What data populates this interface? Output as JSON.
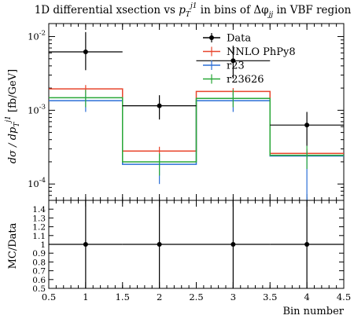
{
  "chart_data": {
    "type": "line",
    "title_prefix": "1D differential xsection vs ",
    "title_suffix": " in bins of Δφ",
    "title_tail": " in VBF region",
    "ylabel_main_prefix": "dσ / dp",
    "ylabel_main_suffix": " [fb/GeV]",
    "ylabel_ratio": "MC/Data",
    "xlabel": "Bin number",
    "x_ticks": [
      "0.5",
      "1",
      "1.5",
      "2",
      "2.5",
      "3",
      "3.5",
      "4",
      "4.5"
    ],
    "x_range": [
      0.5,
      4.5
    ],
    "main_ylim": [
      6e-05,
      0.015
    ],
    "main_scale": "log",
    "main_y_ticks": [
      "10",
      "10",
      "10"
    ],
    "main_y_exponents": [
      "-4",
      "-3",
      "-2"
    ],
    "ratio_ylim": [
      0.5,
      1.5
    ],
    "ratio_y_ticks": [
      "0.5",
      "0.6",
      "0.7",
      "0.8",
      "0.9",
      "1",
      "1.1",
      "1.2",
      "1.3",
      "1.4"
    ],
    "legend_location": "top-right",
    "bin_edges": [
      0.5,
      1.5,
      2.5,
      3.5,
      4.5
    ],
    "data": {
      "name": "Data",
      "x": [
        1,
        2,
        3,
        4
      ],
      "y": [
        0.0062,
        0.00115,
        0.0047,
        0.00063
      ],
      "y_low": [
        0.0035,
        0.00075,
        0.0027,
        0.00033
      ],
      "y_high": [
        0.0115,
        0.0016,
        0.0075,
        0.00095
      ]
    },
    "series": [
      {
        "name": "NNLO PhPy8",
        "color": "#e8462d",
        "values": [
          0.00195,
          0.00028,
          0.0018,
          0.00026
        ],
        "err_low": [
          0.0017,
          0.00024,
          0.0016,
          0.00022
        ],
        "err_high": [
          0.0022,
          0.00032,
          0.002,
          0.0003
        ]
      },
      {
        "name": "r23",
        "color": "#2b6fd6",
        "values": [
          0.00135,
          0.000185,
          0.00135,
          0.00024
        ],
        "err_low": [
          0.00095,
          0.0001,
          0.00095,
          6e-05
        ],
        "err_high": [
          0.0017,
          0.00025,
          0.0017,
          0.00028
        ]
      },
      {
        "name": "r23626",
        "color": "#28a737",
        "values": [
          0.00148,
          0.0002,
          0.00145,
          0.000245
        ],
        "err_low": [
          0.0011,
          0.00013,
          0.0011,
          0.00016
        ],
        "err_high": [
          0.0019,
          0.00026,
          0.0019,
          0.00033
        ]
      }
    ],
    "ratio_data": {
      "x": [
        1,
        2,
        3,
        4
      ],
      "y": [
        1,
        1,
        1,
        1
      ]
    }
  }
}
